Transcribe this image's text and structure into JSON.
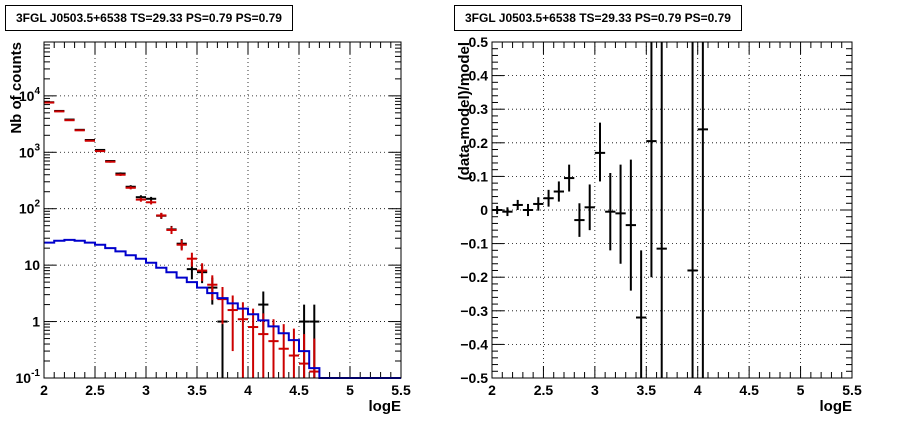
{
  "chart_data": [
    {
      "type": "histogram",
      "title": "3FGL J0503.5+6538 TS=29.33 PS=0.79 PS=0.79",
      "xlabel": "logE",
      "ylabel": "Nb of counts",
      "xlim": [
        2,
        5.5
      ],
      "ylim": [
        0.1,
        90000
      ],
      "yscale": "log",
      "grid": true,
      "x_ticks": [
        "2",
        "2.5",
        "3",
        "3.5",
        "4",
        "4.5",
        "5",
        "5.5"
      ],
      "y_ticks": [
        "10^-1",
        "1",
        "10",
        "10^2",
        "10^3",
        "10^4"
      ],
      "bin_width": 0.1,
      "series": [
        {
          "name": "",
          "style": "errorbar",
          "color": "#000000",
          "points": [
            {
              "x": 2.05,
              "y": 7700,
              "lo": 7612,
              "hi": 7788
            },
            {
              "x": 2.15,
              "y": 5400,
              "lo": 5327,
              "hi": 5473
            },
            {
              "x": 2.25,
              "y": 3800,
              "lo": 3738,
              "hi": 3862
            },
            {
              "x": 2.35,
              "y": 2500,
              "lo": 2450,
              "hi": 2550
            },
            {
              "x": 2.45,
              "y": 1650,
              "lo": 1609,
              "hi": 1691
            },
            {
              "x": 2.55,
              "y": 1100,
              "lo": 1067,
              "hi": 1133
            },
            {
              "x": 2.65,
              "y": 700,
              "lo": 674,
              "hi": 726
            },
            {
              "x": 2.75,
              "y": 420,
              "lo": 400,
              "hi": 440
            },
            {
              "x": 2.85,
              "y": 245,
              "lo": 229,
              "hi": 261
            },
            {
              "x": 2.95,
              "y": 160,
              "lo": 147,
              "hi": 173
            },
            {
              "x": 3.05,
              "y": 150,
              "lo": 138,
              "hi": 162
            },
            {
              "x": 3.15,
              "y": 75,
              "lo": 66,
              "hi": 84
            },
            {
              "x": 3.25,
              "y": 43,
              "lo": 36.5,
              "hi": 49.5
            },
            {
              "x": 3.35,
              "y": 24,
              "lo": 19.1,
              "hi": 28.9
            },
            {
              "x": 3.45,
              "y": 8.5,
              "lo": 5.6,
              "hi": 11.4
            },
            {
              "x": 3.55,
              "y": 7.5,
              "lo": 4.8,
              "hi": 10.2
            },
            {
              "x": 3.65,
              "y": 4,
              "lo": 2,
              "hi": 6
            },
            {
              "x": 3.75,
              "y": 1,
              "lo": 0.1,
              "hi": 2
            },
            {
              "x": 4.15,
              "y": 2,
              "lo": 0.59,
              "hi": 3.41
            },
            {
              "x": 4.55,
              "y": 1,
              "lo": 0.1,
              "hi": 2
            },
            {
              "x": 4.65,
              "y": 1,
              "lo": 0.1,
              "hi": 2
            }
          ]
        },
        {
          "name": "",
          "style": "errorbar",
          "color": "#cc0000",
          "points": [
            {
              "x": 2.05,
              "y": 7600,
              "lo": 7600,
              "hi": 7600
            },
            {
              "x": 2.15,
              "y": 5300,
              "lo": 5300,
              "hi": 5300
            },
            {
              "x": 2.25,
              "y": 3700,
              "lo": 3700,
              "hi": 3700
            },
            {
              "x": 2.35,
              "y": 2450,
              "lo": 2450,
              "hi": 2450
            },
            {
              "x": 2.45,
              "y": 1600,
              "lo": 1560,
              "hi": 1640
            },
            {
              "x": 2.55,
              "y": 1050,
              "lo": 1020,
              "hi": 1080
            },
            {
              "x": 2.65,
              "y": 680,
              "lo": 655,
              "hi": 705
            },
            {
              "x": 2.75,
              "y": 400,
              "lo": 381,
              "hi": 419
            },
            {
              "x": 2.85,
              "y": 235,
              "lo": 220,
              "hi": 250
            },
            {
              "x": 2.95,
              "y": 145,
              "lo": 133,
              "hi": 157
            },
            {
              "x": 3.05,
              "y": 130,
              "lo": 119,
              "hi": 141
            },
            {
              "x": 3.15,
              "y": 76,
              "lo": 67.5,
              "hi": 84.5
            },
            {
              "x": 3.25,
              "y": 42,
              "lo": 35.6,
              "hi": 48.4
            },
            {
              "x": 3.35,
              "y": 23,
              "lo": 18.2,
              "hi": 27.8
            },
            {
              "x": 3.45,
              "y": 13,
              "lo": 9.4,
              "hi": 16.6
            },
            {
              "x": 3.55,
              "y": 8,
              "lo": 5.2,
              "hi": 10.8
            },
            {
              "x": 3.65,
              "y": 4.5,
              "lo": 2.4,
              "hi": 6.6
            },
            {
              "x": 3.75,
              "y": 2.5,
              "lo": 0.9,
              "hi": 4.1
            },
            {
              "x": 3.85,
              "y": 1.6,
              "lo": 0.3,
              "hi": 2.9
            },
            {
              "x": 3.95,
              "y": 1.1,
              "lo": 0.1,
              "hi": 2.2
            },
            {
              "x": 4.05,
              "y": 0.8,
              "lo": 0.1,
              "hi": 1.7
            },
            {
              "x": 4.15,
              "y": 0.6,
              "lo": 0.1,
              "hi": 1.4
            },
            {
              "x": 4.25,
              "y": 0.45,
              "lo": 0.1,
              "hi": 1.1
            },
            {
              "x": 4.35,
              "y": 0.33,
              "lo": 0.1,
              "hi": 0.9
            },
            {
              "x": 4.45,
              "y": 0.25,
              "lo": 0.1,
              "hi": 0.75
            },
            {
              "x": 4.55,
              "y": 0.18,
              "lo": 0.1,
              "hi": 0.6
            },
            {
              "x": 4.65,
              "y": 0.13,
              "lo": 0.1,
              "hi": 0.5
            }
          ]
        },
        {
          "name": "",
          "style": "step",
          "color": "#0000cc",
          "x_edges": [
            2.0,
            2.1,
            2.2,
            2.3,
            2.4,
            2.5,
            2.6,
            2.7,
            2.8,
            2.9,
            3.0,
            3.1,
            3.2,
            3.3,
            3.4,
            3.5,
            3.6,
            3.7,
            3.8,
            3.9,
            4.0,
            4.1,
            4.2,
            4.3,
            4.4,
            4.5,
            4.6,
            4.7,
            4.8,
            4.9,
            5.0,
            5.1,
            5.2,
            5.3,
            5.4,
            5.5
          ],
          "values": [
            25,
            27,
            28,
            27,
            25,
            23,
            20,
            17.5,
            15,
            13,
            11,
            9,
            7.5,
            6,
            5,
            4,
            3.2,
            2.6,
            2.1,
            1.7,
            1.35,
            1.05,
            0.82,
            0.62,
            0.47,
            0.3,
            0.15,
            0.1,
            0.1,
            0.1,
            0.1,
            0.1,
            0.1,
            0.1,
            0.1
          ]
        }
      ]
    },
    {
      "type": "scatter",
      "title": "3FGL J0503.5+6538 TS=29.33 PS=0.79 PS=0.79",
      "xlabel": "logE",
      "ylabel": "(data-model)/model",
      "xlim": [
        2,
        5.5
      ],
      "ylim": [
        -0.5,
        0.5
      ],
      "grid": true,
      "x_ticks": [
        "2",
        "2.5",
        "3",
        "3.5",
        "4",
        "4.5",
        "5",
        "5.5"
      ],
      "y_ticks": [
        "-0.5",
        "-0.4",
        "-0.3",
        "-0.2",
        "-0.1",
        "0",
        "0.1",
        "0.2",
        "0.3",
        "0.4",
        "0.5"
      ],
      "bin_width": 0.1,
      "series": [
        {
          "name": "",
          "style": "errorbar",
          "color": "#000000",
          "points": [
            {
              "x": 2.05,
              "y": 0.0,
              "lo": -0.012,
              "hi": 0.012
            },
            {
              "x": 2.15,
              "y": -0.005,
              "lo": -0.018,
              "hi": 0.008
            },
            {
              "x": 2.25,
              "y": 0.015,
              "lo": 0.0,
              "hi": 0.03
            },
            {
              "x": 2.35,
              "y": 0.0,
              "lo": -0.018,
              "hi": 0.018
            },
            {
              "x": 2.45,
              "y": 0.018,
              "lo": -0.002,
              "hi": 0.038
            },
            {
              "x": 2.55,
              "y": 0.035,
              "lo": 0.01,
              "hi": 0.06
            },
            {
              "x": 2.65,
              "y": 0.055,
              "lo": 0.025,
              "hi": 0.085
            },
            {
              "x": 2.75,
              "y": 0.095,
              "lo": 0.055,
              "hi": 0.135
            },
            {
              "x": 2.85,
              "y": -0.03,
              "lo": -0.08,
              "hi": 0.02
            },
            {
              "x": 2.95,
              "y": 0.008,
              "lo": -0.06,
              "hi": 0.076
            },
            {
              "x": 3.05,
              "y": 0.17,
              "lo": 0.085,
              "hi": 0.26
            },
            {
              "x": 3.15,
              "y": -0.005,
              "lo": -0.12,
              "hi": 0.11
            },
            {
              "x": 3.25,
              "y": -0.01,
              "lo": -0.16,
              "hi": 0.135
            },
            {
              "x": 3.35,
              "y": -0.045,
              "lo": -0.24,
              "hi": 0.15
            },
            {
              "x": 3.45,
              "y": -0.32,
              "lo": -0.52,
              "hi": -0.12
            },
            {
              "x": 3.55,
              "y": 0.205,
              "lo": -0.2,
              "hi": 0.6
            },
            {
              "x": 3.65,
              "y": -0.115,
              "lo": -0.52,
              "hi": 0.5
            },
            {
              "x": 3.95,
              "y": -0.18,
              "lo": -0.52,
              "hi": 0.6
            },
            {
              "x": 4.05,
              "y": 0.24,
              "lo": -0.52,
              "hi": 0.6
            }
          ]
        }
      ]
    }
  ]
}
